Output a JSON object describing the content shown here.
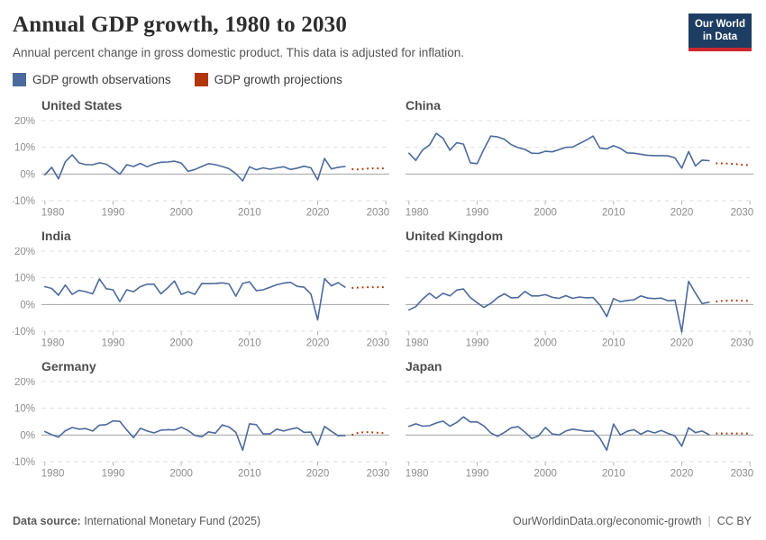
{
  "header": {
    "title": "Annual GDP growth, 1980 to 2030",
    "subtitle": "Annual percent change in gross domestic product. This data is adjusted for inflation.",
    "logo": {
      "line1": "Our World",
      "line2": "in Data",
      "bg": "#1d3d63",
      "accent": "#cf2630"
    }
  },
  "legend": {
    "items": [
      {
        "label": "GDP growth observations",
        "color": "#4c6a9c"
      },
      {
        "label": "GDP growth projections",
        "color": "#b13507"
      }
    ]
  },
  "footer": {
    "source_label": "Data source:",
    "source_value": "International Monetary Fund (2025)",
    "link": "OurWorldinData.org/economic-growth",
    "separator": "|",
    "license": "CC BY"
  },
  "chart_data": {
    "type": "line",
    "title": "Annual GDP growth, 1980 to 2030",
    "xlim": [
      1979.5,
      2030.5
    ],
    "ylim": [
      -10,
      20
    ],
    "x_ticks": [
      1980,
      1990,
      2000,
      2010,
      2020,
      2030
    ],
    "y_ticks": [
      20,
      10,
      0,
      -10
    ],
    "y_tick_labels": [
      "20%",
      "10%",
      "0%",
      "-10%"
    ],
    "grid": "dashed horizontal at -10, 10, 20; solid zero line",
    "observation_color": "#4c6a9c",
    "projection_color": "#b13507",
    "panels": [
      {
        "title": "United States",
        "show_y_labels": true,
        "observations": {
          "start_year": 1980,
          "values": [
            -0.3,
            2.5,
            -1.8,
            4.6,
            7.2,
            4.2,
            3.5,
            3.5,
            4.2,
            3.7,
            1.9,
            -0.1,
            3.5,
            2.8,
            4.0,
            2.7,
            3.8,
            4.4,
            4.5,
            4.8,
            4.1,
            1.0,
            1.7,
            2.8,
            3.9,
            3.5,
            2.8,
            2.0,
            0.1,
            -2.6,
            2.7,
            1.6,
            2.3,
            1.8,
            2.3,
            2.7,
            1.7,
            2.2,
            2.9,
            2.3,
            -2.2,
            5.8,
            1.9,
            2.5,
            2.8
          ]
        },
        "projections": {
          "start_year": 2025,
          "values": [
            1.8,
            1.7,
            2.0,
            2.1,
            2.1,
            2.1
          ]
        }
      },
      {
        "title": "China",
        "show_y_labels": false,
        "observations": {
          "start_year": 1980,
          "values": [
            7.8,
            5.1,
            9.0,
            10.8,
            15.2,
            13.4,
            8.9,
            11.7,
            11.2,
            4.2,
            3.9,
            9.3,
            14.2,
            13.9,
            13.0,
            11.0,
            9.9,
            9.2,
            7.8,
            7.7,
            8.5,
            8.3,
            9.1,
            10.0,
            10.1,
            11.4,
            12.7,
            14.2,
            9.7,
            9.4,
            10.6,
            9.6,
            7.9,
            7.8,
            7.4,
            7.0,
            6.9,
            6.9,
            6.8,
            6.0,
            2.2,
            8.4,
            3.0,
            5.2,
            5.0
          ]
        },
        "projections": {
          "start_year": 2025,
          "values": [
            4.0,
            4.0,
            3.9,
            3.7,
            3.4,
            3.3
          ]
        }
      },
      {
        "title": "India",
        "show_y_labels": true,
        "observations": {
          "start_year": 1980,
          "values": [
            6.7,
            6.0,
            3.5,
            7.3,
            3.8,
            5.3,
            4.8,
            4.0,
            9.6,
            5.9,
            5.5,
            1.1,
            5.5,
            4.8,
            6.7,
            7.6,
            7.6,
            4.0,
            6.2,
            8.8,
            3.8,
            4.8,
            3.8,
            7.9,
            7.8,
            7.9,
            8.1,
            7.7,
            3.1,
            7.9,
            8.5,
            5.2,
            5.5,
            6.4,
            7.4,
            8.0,
            8.3,
            6.8,
            6.5,
            3.9,
            -5.8,
            9.7,
            7.0,
            8.2,
            6.5
          ]
        },
        "projections": {
          "start_year": 2025,
          "values": [
            6.2,
            6.3,
            6.5,
            6.5,
            6.5,
            6.5
          ]
        }
      },
      {
        "title": "United Kingdom",
        "show_y_labels": false,
        "observations": {
          "start_year": 1980,
          "values": [
            -2.0,
            -0.8,
            2.0,
            4.2,
            2.3,
            4.2,
            3.2,
            5.4,
            5.8,
            2.6,
            0.7,
            -1.1,
            0.4,
            2.6,
            4.0,
            2.5,
            2.6,
            4.9,
            3.2,
            3.2,
            3.7,
            2.7,
            2.3,
            3.3,
            2.3,
            2.8,
            2.5,
            2.6,
            -0.2,
            -4.5,
            2.2,
            1.1,
            1.5,
            1.8,
            3.2,
            2.4,
            2.2,
            2.4,
            1.4,
            1.6,
            -10.3,
            8.7,
            4.3,
            0.3,
            0.9
          ]
        },
        "projections": {
          "start_year": 2025,
          "values": [
            1.1,
            1.4,
            1.5,
            1.5,
            1.4,
            1.4
          ]
        }
      },
      {
        "title": "Germany",
        "show_y_labels": true,
        "observations": {
          "start_year": 1980,
          "values": [
            1.3,
            0.1,
            -0.8,
            1.6,
            2.8,
            2.2,
            2.4,
            1.5,
            3.7,
            3.9,
            5.3,
            5.1,
            1.9,
            -1.0,
            2.5,
            1.5,
            0.8,
            1.8,
            2.0,
            1.9,
            2.9,
            1.7,
            -0.2,
            -0.7,
            1.2,
            0.7,
            3.8,
            3.0,
            1.0,
            -5.7,
            4.2,
            3.9,
            0.4,
            0.4,
            2.2,
            1.5,
            2.2,
            2.7,
            1.0,
            1.1,
            -3.8,
            3.2,
            1.4,
            -0.3,
            -0.2
          ]
        },
        "projections": {
          "start_year": 2025,
          "values": [
            0.0,
            0.9,
            1.1,
            1.0,
            0.8,
            0.7
          ]
        }
      },
      {
        "title": "Japan",
        "show_y_labels": false,
        "observations": {
          "start_year": 1980,
          "values": [
            3.2,
            4.2,
            3.3,
            3.5,
            4.5,
            5.2,
            3.3,
            4.7,
            6.8,
            4.9,
            4.9,
            3.4,
            0.8,
            -0.5,
            1.0,
            2.7,
            3.1,
            1.1,
            -1.3,
            -0.3,
            2.8,
            0.4,
            0.0,
            1.5,
            2.2,
            1.8,
            1.4,
            1.5,
            -1.2,
            -5.7,
            4.1,
            0.0,
            1.4,
            2.0,
            0.3,
            1.6,
            0.8,
            1.7,
            0.6,
            -0.4,
            -4.2,
            2.7,
            0.9,
            1.5,
            0.1
          ]
        },
        "projections": {
          "start_year": 2025,
          "values": [
            0.6,
            0.6,
            0.6,
            0.6,
            0.6,
            0.6
          ]
        }
      }
    ]
  }
}
